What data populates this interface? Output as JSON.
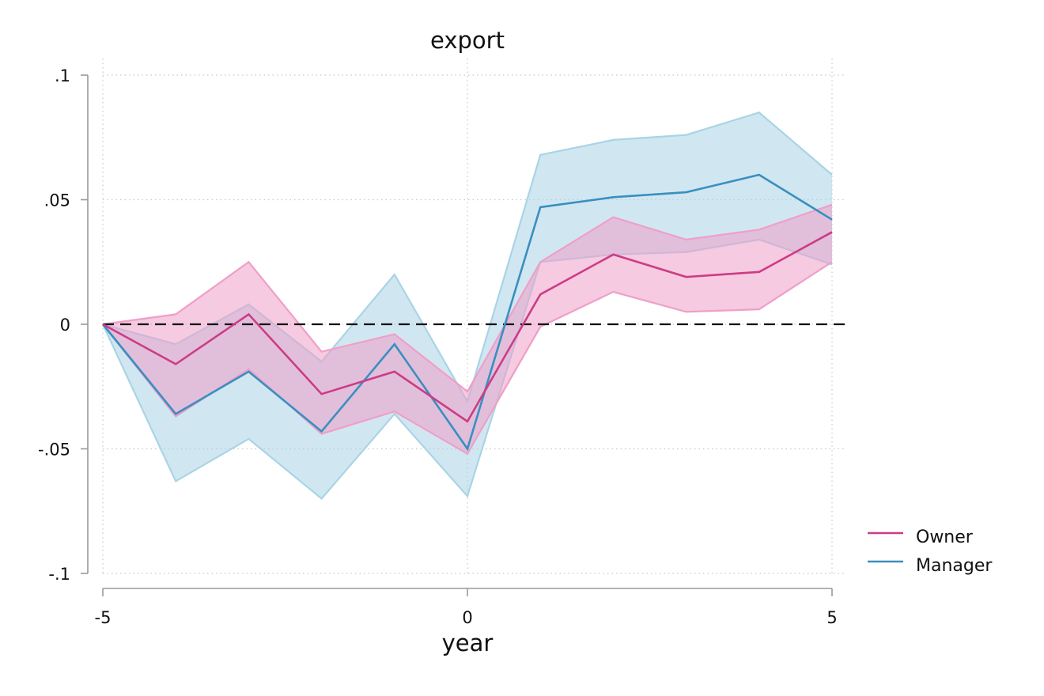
{
  "chart_data": {
    "type": "line",
    "title": "export",
    "xlabel": "year",
    "ylabel": "",
    "x": [
      -5,
      -4,
      -3,
      -2,
      -1,
      0,
      1,
      2,
      3,
      4,
      5
    ],
    "xlim": [
      -5,
      5
    ],
    "ylim": [
      -0.1,
      0.1
    ],
    "xticks": [
      -5,
      0,
      5
    ],
    "xtick_labels": [
      "-5",
      "0",
      "5"
    ],
    "yticks": [
      -0.1,
      -0.05,
      0,
      0.05,
      0.1
    ],
    "ytick_labels": [
      "-.1",
      "-.05",
      "0",
      ".05",
      ".1"
    ],
    "grid": true,
    "reference_line": {
      "y": 0,
      "style": "dashed",
      "color": "#111111"
    },
    "legend_position": "right",
    "series": [
      {
        "name": "Manager",
        "color": "#3a8fc0",
        "band_color": "#a9d4e5",
        "values": [
          0.0,
          -0.036,
          -0.019,
          -0.043,
          -0.008,
          -0.05,
          0.047,
          0.051,
          0.053,
          0.06,
          0.042
        ],
        "lower": [
          0.0,
          -0.063,
          -0.046,
          -0.07,
          -0.036,
          -0.069,
          0.025,
          0.028,
          0.029,
          0.034,
          0.024
        ],
        "upper": [
          0.0,
          -0.008,
          0.008,
          -0.015,
          0.02,
          -0.031,
          0.068,
          0.074,
          0.076,
          0.085,
          0.06
        ]
      },
      {
        "name": "Owner",
        "color": "#cc3c86",
        "band_color": "#ef9fc8",
        "values": [
          0.0,
          -0.016,
          0.004,
          -0.028,
          -0.019,
          -0.039,
          0.012,
          0.028,
          0.019,
          0.021,
          0.037
        ],
        "lower": [
          0.0,
          -0.037,
          -0.018,
          -0.044,
          -0.035,
          -0.052,
          -0.001,
          0.013,
          0.005,
          0.006,
          0.025
        ],
        "upper": [
          0.0,
          0.004,
          0.025,
          -0.011,
          -0.004,
          -0.027,
          0.025,
          0.043,
          0.034,
          0.038,
          0.048
        ]
      }
    ],
    "legend": [
      "Owner",
      "Manager"
    ]
  }
}
